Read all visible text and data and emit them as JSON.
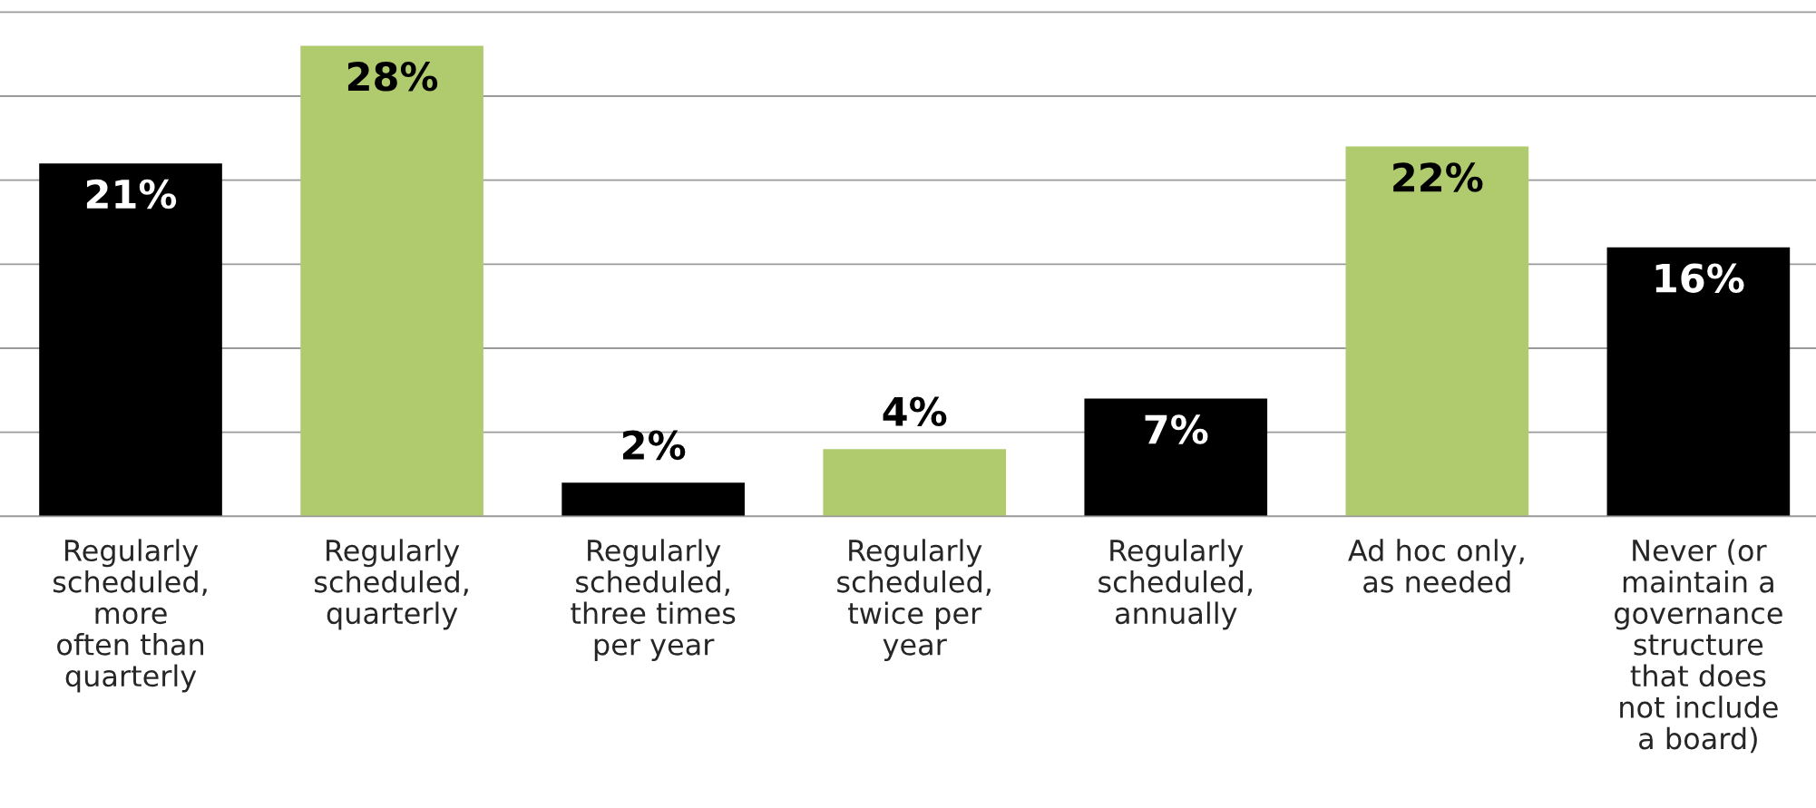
{
  "chart_data": {
    "type": "bar",
    "categories": [
      "Regularly\nscheduled,\nmore\noften than\nquarterly",
      "Regularly\nscheduled,\nquarterly",
      "Regularly\nscheduled,\nthree times\nper year",
      "Regularly\nscheduled,\ntwice per\nyear",
      "Regularly\nscheduled,\nannually",
      "Ad hoc only,\nas needed",
      "Never (or\nmaintain a\ngovernance\nstructure\nthat does\nnot include\na board)"
    ],
    "values": [
      21,
      28,
      2,
      4,
      7,
      22,
      16
    ],
    "value_labels": [
      "21%",
      "28%",
      "2%",
      "4%",
      "7%",
      "22%",
      "16%"
    ],
    "colors": [
      "#000000",
      "#afcb6e",
      "#000000",
      "#afcb6e",
      "#000000",
      "#afcb6e",
      "#000000"
    ],
    "grid": "y",
    "tick_labels": "x"
  }
}
